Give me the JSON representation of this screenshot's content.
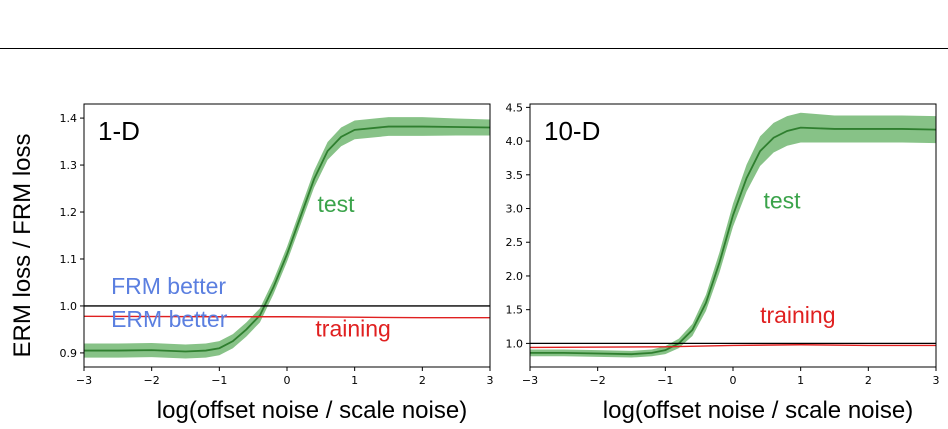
{
  "chart_data": [
    {
      "type": "line",
      "panel_label": "1-D",
      "xlabel": "log(offset noise / scale noise)",
      "ylabel": "ERM loss / FRM loss",
      "xlim": [
        -3,
        3
      ],
      "ylim": [
        0.87,
        1.43
      ],
      "xticks": [
        "−3",
        "−2",
        "−1",
        "0",
        "1",
        "2",
        "3"
      ],
      "yticks": [
        "0.9",
        "1.0",
        "1.1",
        "1.2",
        "1.3",
        "1.4"
      ],
      "reference_line": 1.0,
      "annotations": [
        {
          "text": "FRM better",
          "color": "#5b7fe0",
          "x": -2.6,
          "y": 1.025
        },
        {
          "text": "ERM better",
          "color": "#5b7fe0",
          "x": -2.6,
          "y": 0.955
        },
        {
          "text": "test",
          "color": "#3aa34a",
          "x": 0.45,
          "y": 1.2
        },
        {
          "text": "training",
          "color": "#e02020",
          "x": 0.42,
          "y": 0.935
        }
      ],
      "series": [
        {
          "name": "test",
          "color": "#2f7f2f",
          "fill": "#5fae5f",
          "x": [
            -3,
            -2.5,
            -2,
            -1.5,
            -1.2,
            -1,
            -0.8,
            -0.6,
            -0.4,
            -0.2,
            0,
            0.2,
            0.4,
            0.6,
            0.8,
            1,
            1.5,
            2,
            2.5,
            3
          ],
          "y": [
            0.905,
            0.905,
            0.906,
            0.903,
            0.905,
            0.91,
            0.925,
            0.95,
            0.98,
            1.04,
            1.11,
            1.19,
            1.27,
            1.33,
            1.36,
            1.375,
            1.382,
            1.382,
            1.381,
            1.38
          ],
          "band": [
            0.015,
            0.015,
            0.015,
            0.015,
            0.015,
            0.015,
            0.015,
            0.015,
            0.015,
            0.015,
            0.016,
            0.017,
            0.018,
            0.019,
            0.02,
            0.02,
            0.02,
            0.02,
            0.018,
            0.017
          ]
        },
        {
          "name": "training",
          "color": "#e02020",
          "x": [
            -3,
            -1,
            0,
            1,
            2,
            3
          ],
          "y": [
            0.978,
            0.977,
            0.977,
            0.976,
            0.975,
            0.975
          ]
        }
      ]
    },
    {
      "type": "line",
      "panel_label": "10-D",
      "xlabel": "log(offset noise / scale noise)",
      "xlim": [
        -3,
        3
      ],
      "ylim": [
        0.65,
        4.55
      ],
      "xticks": [
        "−3",
        "−2",
        "−1",
        "0",
        "1",
        "2",
        "3"
      ],
      "yticks": [
        "1.0",
        "1.5",
        "2.0",
        "2.5",
        "3.0",
        "3.5",
        "4.0",
        "4.5"
      ],
      "reference_line": 1.0,
      "annotations": [
        {
          "text": "test",
          "color": "#3aa34a",
          "x": 0.45,
          "y": 3.0
        },
        {
          "text": "training",
          "color": "#e02020",
          "x": 0.4,
          "y": 1.3
        }
      ],
      "series": [
        {
          "name": "test",
          "color": "#2f7f2f",
          "fill": "#5fae5f",
          "x": [
            -3,
            -2.5,
            -2,
            -1.5,
            -1.2,
            -1,
            -0.8,
            -0.6,
            -0.4,
            -0.2,
            0,
            0.2,
            0.4,
            0.6,
            0.8,
            1,
            1.5,
            2,
            2.5,
            3
          ],
          "y": [
            0.86,
            0.86,
            0.85,
            0.84,
            0.86,
            0.9,
            1.0,
            1.2,
            1.6,
            2.2,
            2.9,
            3.45,
            3.85,
            4.05,
            4.15,
            4.2,
            4.18,
            4.18,
            4.18,
            4.17
          ],
          "band": [
            0.05,
            0.05,
            0.05,
            0.05,
            0.05,
            0.06,
            0.07,
            0.09,
            0.12,
            0.15,
            0.17,
            0.2,
            0.22,
            0.22,
            0.22,
            0.22,
            0.2,
            0.2,
            0.2,
            0.2
          ]
        },
        {
          "name": "training",
          "color": "#e02020",
          "x": [
            -3,
            -1,
            0,
            1,
            2,
            3
          ],
          "y": [
            0.94,
            0.95,
            0.97,
            0.98,
            0.97,
            0.97
          ]
        }
      ]
    }
  ]
}
